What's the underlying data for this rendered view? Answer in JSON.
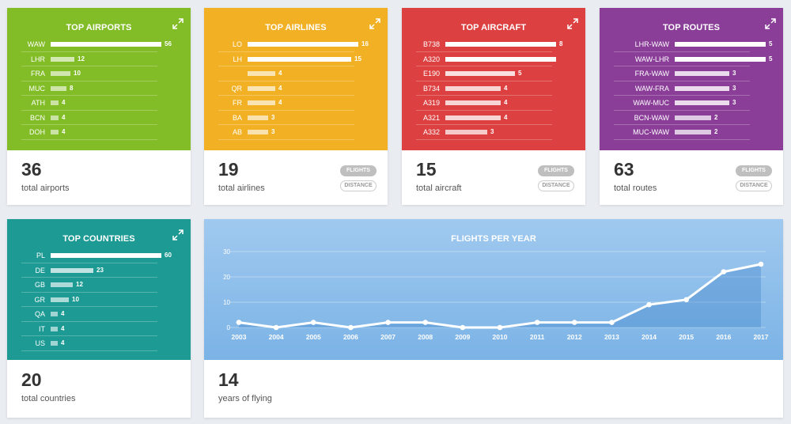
{
  "colors": {
    "airports": "#82bc26",
    "airlines": "#f2b125",
    "aircraft": "#dc4040",
    "routes": "#8a3e98",
    "countries": "#1d9a93",
    "chart": "#8ec0eb"
  },
  "airports": {
    "title": "TOP AIRPORTS",
    "total": "36",
    "total_label": "total airports",
    "rows": [
      {
        "label": "WAW",
        "value": 56
      },
      {
        "label": "LHR",
        "value": 12
      },
      {
        "label": "FRA",
        "value": 10
      },
      {
        "label": "MUC",
        "value": 8
      },
      {
        "label": "ATH",
        "value": 4
      },
      {
        "label": "BCN",
        "value": 4
      },
      {
        "label": "DOH",
        "value": 4
      }
    ]
  },
  "airlines": {
    "title": "TOP AIRLINES",
    "total": "19",
    "total_label": "total airlines",
    "flights_label": "FLIGHTS",
    "distance_label": "DISTANCE",
    "rows": [
      {
        "label": "LO",
        "value": 16
      },
      {
        "label": "LH",
        "value": 15
      },
      {
        "label": "",
        "value": 4
      },
      {
        "label": "QR",
        "value": 4
      },
      {
        "label": "FR",
        "value": 4
      },
      {
        "label": "BA",
        "value": 3
      },
      {
        "label": "AB",
        "value": 3
      }
    ]
  },
  "aircraft": {
    "title": "TOP AIRCRAFT",
    "total": "15",
    "total_label": "total aircraft",
    "flights_label": "FLIGHTS",
    "distance_label": "DISTANCE",
    "rows": [
      {
        "label": "B738",
        "value": 8
      },
      {
        "label": "A320",
        "value": ""
      },
      {
        "label": "E190",
        "value": 5
      },
      {
        "label": "B734",
        "value": 4
      },
      {
        "label": "A319",
        "value": 4
      },
      {
        "label": "A321",
        "value": 4
      },
      {
        "label": "A332",
        "value": 3
      }
    ]
  },
  "routes": {
    "title": "TOP ROUTES",
    "total": "63",
    "total_label": "total routes",
    "flights_label": "FLIGHTS",
    "distance_label": "DISTANCE",
    "rows": [
      {
        "label": "LHR-WAW",
        "value": 5
      },
      {
        "label": "WAW-LHR",
        "value": 5
      },
      {
        "label": "FRA-WAW",
        "value": 3
      },
      {
        "label": "WAW-FRA",
        "value": 3
      },
      {
        "label": "WAW-MUC",
        "value": 3
      },
      {
        "label": "BCN-WAW",
        "value": 2
      },
      {
        "label": "MUC-WAW",
        "value": 2
      }
    ]
  },
  "countries": {
    "title": "TOP COUNTRIES",
    "total": "20",
    "total_label": "total countries",
    "rows": [
      {
        "label": "PL",
        "value": 60
      },
      {
        "label": "DE",
        "value": 23
      },
      {
        "label": "GB",
        "value": 12
      },
      {
        "label": "GR",
        "value": 10
      },
      {
        "label": "QA",
        "value": 4
      },
      {
        "label": "IT",
        "value": 4
      },
      {
        "label": "US",
        "value": 4
      }
    ]
  },
  "years": {
    "title": "FLIGHTS PER YEAR",
    "total": "14",
    "total_label": "years of flying"
  },
  "chart_data": {
    "type": "area",
    "title": "FLIGHTS PER YEAR",
    "x": [
      "2003",
      "2004",
      "2005",
      "2006",
      "2007",
      "2008",
      "2009",
      "2010",
      "2011",
      "2012",
      "2013",
      "2014",
      "2015",
      "2016",
      "2017"
    ],
    "values": [
      2,
      0,
      2,
      0,
      2,
      2,
      0,
      0,
      2,
      2,
      2,
      9,
      11,
      22,
      25
    ],
    "yticks": [
      0,
      10,
      20,
      30
    ],
    "ylim": [
      0,
      30
    ],
    "grid": true
  }
}
